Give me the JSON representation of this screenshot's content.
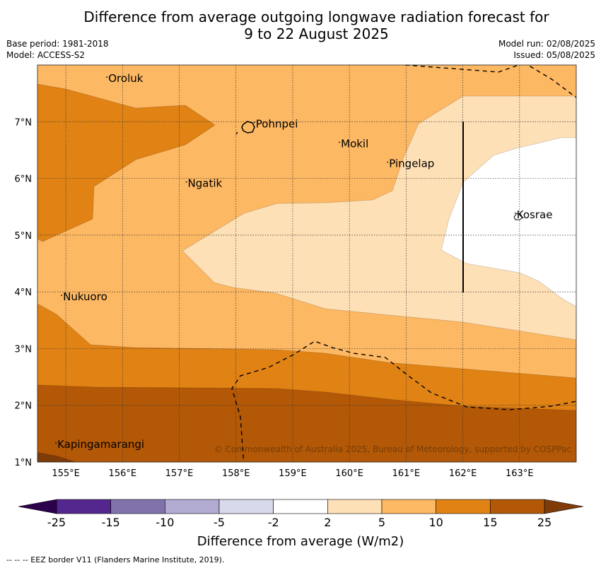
{
  "title_line1": "Difference from average outgoing longwave radiation forecast for",
  "title_line2": "9 to 22 August 2025",
  "base_period": "Base period: 1981-2018",
  "model": "Model: ACCESS-S2",
  "model_run": "Model run: 02/08/2025",
  "issued": "Issued: 05/08/2025",
  "copyright": "© Commonwealth of Australia 2025, Bureau of Meteorology, supported by COSPPac",
  "colorbar_label": "Difference from average (W/m2)",
  "footer": "--  --  -- EEZ border V11 (Flanders Marine Institute, 2019).",
  "lon_labels": [
    "155°E",
    "156°E",
    "157°E",
    "158°E",
    "159°E",
    "160°E",
    "161°E",
    "162°E",
    "163°E"
  ],
  "lon_values": [
    155,
    156,
    157,
    158,
    159,
    160,
    161,
    162,
    163
  ],
  "lat_labels": [
    "1°N",
    "2°N",
    "3°N",
    "4°N",
    "5°N",
    "6°N",
    "7°N"
  ],
  "lat_values": [
    1,
    2,
    3,
    4,
    5,
    6,
    7
  ],
  "map_extent": {
    "lon_min": 154.5,
    "lon_max": 164.0,
    "lat_min": 1.0,
    "lat_max": 8.0
  },
  "places": [
    {
      "name": "Oroluk",
      "lon": 155.75,
      "lat": 7.7
    },
    {
      "name": "Pohnpei",
      "lon": 158.35,
      "lat": 6.9
    },
    {
      "name": "Mokil",
      "lon": 159.85,
      "lat": 6.55
    },
    {
      "name": "Pingelap",
      "lon": 160.7,
      "lat": 6.2
    },
    {
      "name": "Ngatik",
      "lon": 157.15,
      "lat": 5.85
    },
    {
      "name": "Kosrae",
      "lon": 162.95,
      "lat": 5.3
    },
    {
      "name": "Nukuoro",
      "lon": 154.95,
      "lat": 3.85
    },
    {
      "name": "Kapingamarangi",
      "lon": 154.85,
      "lat": 1.25
    }
  ],
  "colorbar": {
    "ticks": [
      "-25",
      "-15",
      "-10",
      "-5",
      "-2",
      "2",
      "5",
      "10",
      "15",
      "25"
    ],
    "colors": [
      "#54278f",
      "#8073ac",
      "#b2abd2",
      "#d8daeb",
      "#ffffff",
      "#fee0b6",
      "#fdb863",
      "#e08214",
      "#b35806"
    ],
    "extend_min_color": "#2d004b",
    "extend_max_color": "#7f3b08"
  },
  "band_colors": {
    "band_2_5": "#fee0b6",
    "band_5_10": "#fdb863",
    "band_10_15": "#e08214",
    "band_15_25": "#b35806",
    "band_gt_25": "#7f3b08",
    "neutral": "#ffffff"
  }
}
